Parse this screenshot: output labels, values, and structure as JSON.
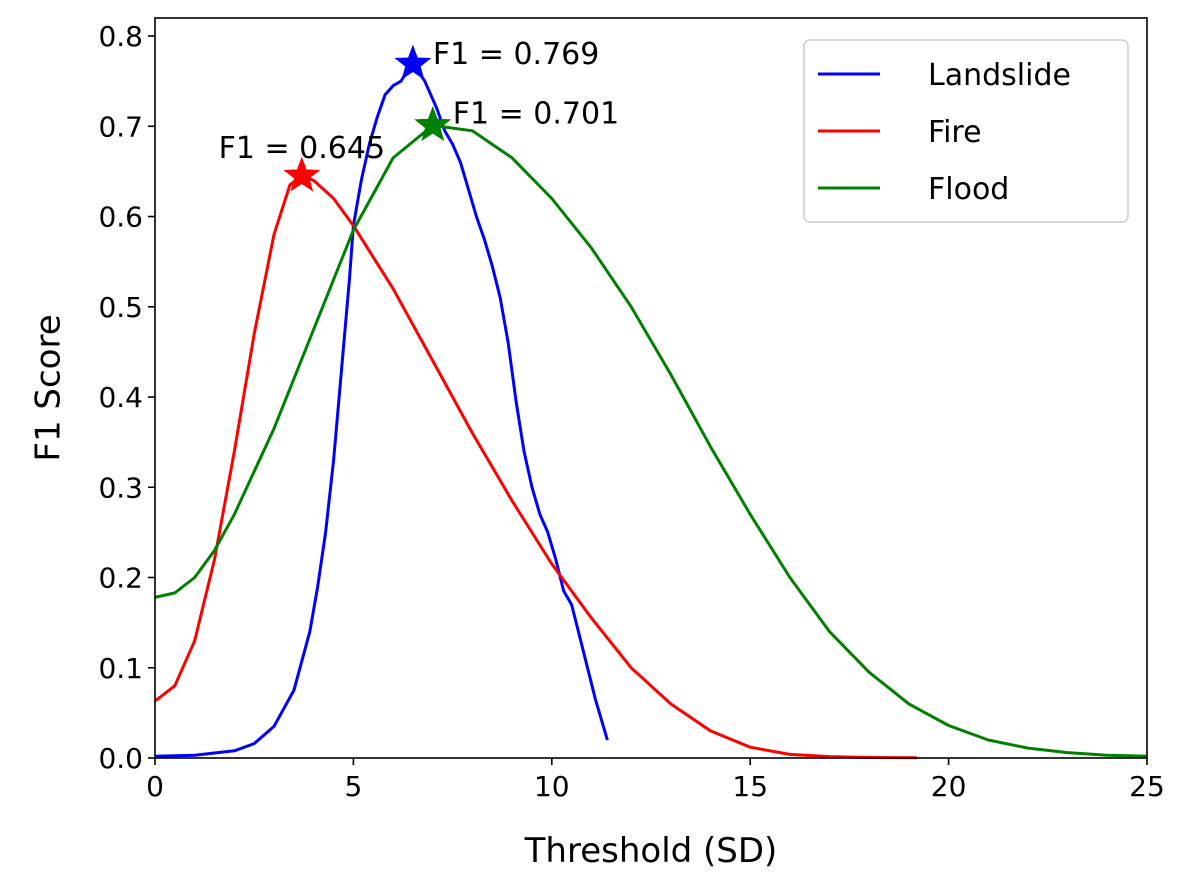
{
  "chart_data": {
    "type": "line",
    "title": "",
    "xlabel": "Threshold (SD)",
    "ylabel": "F1 Score",
    "xlim": [
      0,
      25
    ],
    "ylim": [
      0,
      0.82
    ],
    "xticks": [
      0,
      5,
      10,
      15,
      20,
      25
    ],
    "xtick_labels": [
      "0",
      "5",
      "10",
      "15",
      "20",
      "25"
    ],
    "yticks": [
      0.0,
      0.1,
      0.2,
      0.3,
      0.4,
      0.5,
      0.6,
      0.7,
      0.8
    ],
    "ytick_labels": [
      "0.0",
      "0.1",
      "0.2",
      "0.3",
      "0.4",
      "0.5",
      "0.6",
      "0.7",
      "0.8"
    ],
    "grid": false,
    "legend_position": "top-right",
    "series": [
      {
        "name": "Landslide",
        "color": "#0000ff",
        "points": [
          [
            0,
            0.002
          ],
          [
            1,
            0.003
          ],
          [
            2,
            0.008
          ],
          [
            2.5,
            0.016
          ],
          [
            3,
            0.035
          ],
          [
            3.5,
            0.075
          ],
          [
            3.9,
            0.14
          ],
          [
            4.1,
            0.19
          ],
          [
            4.3,
            0.25
          ],
          [
            4.5,
            0.33
          ],
          [
            4.7,
            0.43
          ],
          [
            4.9,
            0.53
          ],
          [
            5.0,
            0.59
          ],
          [
            5.2,
            0.64
          ],
          [
            5.4,
            0.68
          ],
          [
            5.6,
            0.71
          ],
          [
            5.8,
            0.735
          ],
          [
            6.0,
            0.745
          ],
          [
            6.2,
            0.75
          ],
          [
            6.4,
            0.765
          ],
          [
            6.5,
            0.769
          ],
          [
            6.8,
            0.75
          ],
          [
            7.1,
            0.72
          ],
          [
            7.3,
            0.695
          ],
          [
            7.5,
            0.68
          ],
          [
            7.7,
            0.66
          ],
          [
            7.9,
            0.63
          ],
          [
            8.1,
            0.6
          ],
          [
            8.3,
            0.575
          ],
          [
            8.5,
            0.545
          ],
          [
            8.7,
            0.51
          ],
          [
            8.9,
            0.46
          ],
          [
            9.1,
            0.395
          ],
          [
            9.3,
            0.34
          ],
          [
            9.5,
            0.3
          ],
          [
            9.7,
            0.27
          ],
          [
            9.9,
            0.25
          ],
          [
            10.1,
            0.22
          ],
          [
            10.3,
            0.185
          ],
          [
            10.5,
            0.17
          ],
          [
            10.7,
            0.135
          ],
          [
            10.9,
            0.1
          ],
          [
            11.1,
            0.065
          ],
          [
            11.3,
            0.035
          ],
          [
            11.4,
            0.02
          ]
        ],
        "best": {
          "x": 6.5,
          "y": 0.769,
          "label": "F1 = 0.769"
        }
      },
      {
        "name": "Fire",
        "color": "#ff0000",
        "points": [
          [
            0,
            0.063
          ],
          [
            0.5,
            0.08
          ],
          [
            1,
            0.13
          ],
          [
            1.5,
            0.22
          ],
          [
            2,
            0.34
          ],
          [
            2.5,
            0.47
          ],
          [
            3,
            0.58
          ],
          [
            3.4,
            0.635
          ],
          [
            3.7,
            0.645
          ],
          [
            4,
            0.64
          ],
          [
            4.5,
            0.62
          ],
          [
            5,
            0.59
          ],
          [
            6,
            0.52
          ],
          [
            7,
            0.44
          ],
          [
            8,
            0.36
          ],
          [
            9,
            0.285
          ],
          [
            10,
            0.215
          ],
          [
            11,
            0.155
          ],
          [
            12,
            0.1
          ],
          [
            13,
            0.06
          ],
          [
            14,
            0.03
          ],
          [
            15,
            0.012
          ],
          [
            16,
            0.004
          ],
          [
            17,
            0.0015
          ],
          [
            18,
            0.0005
          ],
          [
            19.2,
            0.0002
          ]
        ],
        "best": {
          "x": 3.7,
          "y": 0.645,
          "label": "F1 = 0.645"
        }
      },
      {
        "name": "Flood",
        "color": "#008000",
        "points": [
          [
            0,
            0.178
          ],
          [
            0.5,
            0.183
          ],
          [
            1,
            0.2
          ],
          [
            1.5,
            0.23
          ],
          [
            2,
            0.27
          ],
          [
            3,
            0.365
          ],
          [
            4,
            0.475
          ],
          [
            5,
            0.585
          ],
          [
            6,
            0.665
          ],
          [
            7,
            0.701
          ],
          [
            8,
            0.695
          ],
          [
            9,
            0.665
          ],
          [
            10,
            0.62
          ],
          [
            11,
            0.565
          ],
          [
            12,
            0.5
          ],
          [
            13,
            0.425
          ],
          [
            14,
            0.345
          ],
          [
            15,
            0.27
          ],
          [
            16,
            0.2
          ],
          [
            17,
            0.14
          ],
          [
            18,
            0.095
          ],
          [
            19,
            0.06
          ],
          [
            20,
            0.036
          ],
          [
            21,
            0.02
          ],
          [
            22,
            0.011
          ],
          [
            23,
            0.006
          ],
          [
            24,
            0.003
          ],
          [
            25,
            0.002
          ]
        ],
        "best": {
          "x": 7.0,
          "y": 0.701,
          "label": "F1 = 0.701"
        }
      }
    ]
  }
}
